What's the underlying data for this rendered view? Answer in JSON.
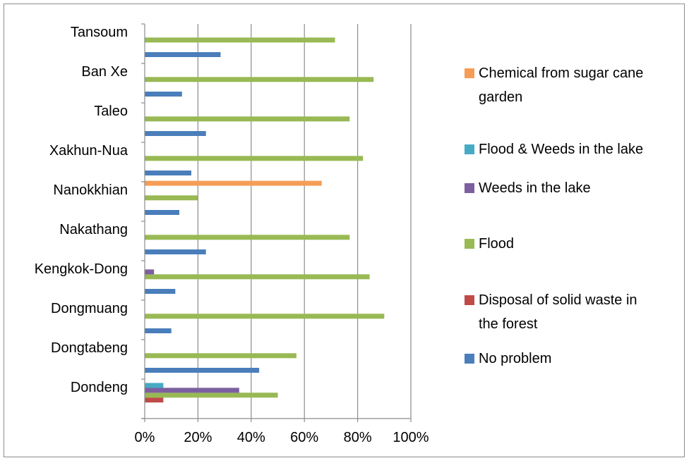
{
  "chart_data": {
    "type": "bar",
    "orientation": "horizontal",
    "title": "",
    "xlabel": "",
    "ylabel": "",
    "xlim": [
      0,
      100
    ],
    "x_ticks": [
      "0%",
      "20%",
      "40%",
      "60%",
      "80%",
      "100%"
    ],
    "grid": "vertical",
    "legend_position": "right",
    "categories": [
      "Dondeng",
      "Dongtabeng",
      "Dongmuang",
      "Kengkok-Dong",
      "Nakathang",
      "Nanokkhian",
      "Xakhun-Nua",
      "Taleo",
      "Ban Xe",
      "Tansoum"
    ],
    "series": [
      {
        "name": "No problem",
        "color": "#4a7ebb",
        "values": [
          0,
          43,
          10,
          11.5,
          23,
          13,
          17.5,
          23,
          14,
          28.5
        ]
      },
      {
        "name": "Disposal of solid waste in the forest",
        "color": "#be4b48",
        "values": [
          7,
          0,
          0,
          0,
          0,
          0,
          0,
          0,
          0,
          0
        ]
      },
      {
        "name": "Flood",
        "color": "#98b954",
        "values": [
          50,
          57,
          90,
          84.5,
          77,
          20,
          82,
          77,
          86,
          71.5
        ]
      },
      {
        "name": "Weeds in the lake",
        "color": "#7d5fa0",
        "values": [
          35.5,
          0,
          0,
          3.5,
          0,
          0,
          0,
          0,
          0,
          0
        ]
      },
      {
        "name": "Flood & Weeds in the lake",
        "color": "#46aac5",
        "values": [
          7,
          0,
          0,
          0,
          0,
          0,
          0,
          0,
          0,
          0
        ]
      },
      {
        "name": "Chemical from sugar cane garden",
        "color": "#f59d56",
        "values": [
          0,
          0,
          0,
          0,
          0,
          66.5,
          0,
          0,
          0,
          0
        ]
      }
    ],
    "legend": [
      {
        "lines": [
          "Chemical from sugar cane",
          "garden"
        ],
        "color": "#f59d56"
      },
      {
        "lines": [
          "Flood & Weeds in the lake"
        ],
        "color": "#46aac5"
      },
      {
        "lines": [
          "Weeds in the lake"
        ],
        "color": "#7d5fa0"
      },
      {
        "lines": [
          "Flood"
        ],
        "color": "#98b954"
      },
      {
        "lines": [
          "Disposal of solid waste in",
          "the forest"
        ],
        "color": "#be4b48"
      },
      {
        "lines": [
          "No problem"
        ],
        "color": "#4a7ebb"
      }
    ],
    "colors": {
      "grid": "#8c8c8c",
      "frame": "#8c8c8c"
    }
  }
}
